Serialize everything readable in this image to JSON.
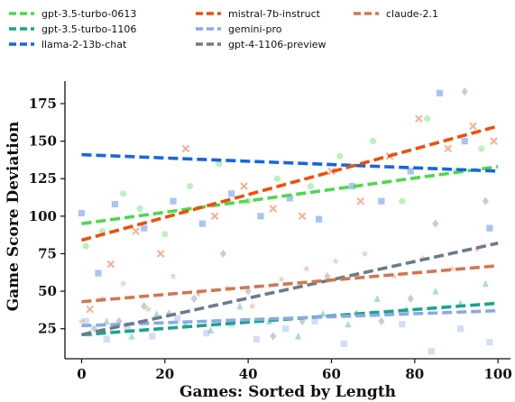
{
  "chart_data": {
    "type": "scatter",
    "title": "",
    "xlabel": "Games: Sorted by Length",
    "ylabel": "Game Score Deviation",
    "xlim": [
      -4,
      103
    ],
    "ylim": [
      5,
      190
    ],
    "xticks": [
      0,
      20,
      40,
      60,
      80,
      100
    ],
    "yticks": [
      25,
      50,
      75,
      100,
      125,
      150,
      175
    ],
    "grid": false,
    "legend_position": "top",
    "trend_style": "dashed linear fit per series over scattered points",
    "series": [
      {
        "name": "gpt-3.5-turbo-0613",
        "color": "#4cd94c",
        "marker": "circle",
        "trend": {
          "x0": 0,
          "y0": 95,
          "x1": 100,
          "y1": 133
        },
        "sample_points": [
          [
            1,
            80
          ],
          [
            5,
            90
          ],
          [
            10,
            115
          ],
          [
            14,
            105
          ],
          [
            20,
            88
          ],
          [
            26,
            120
          ],
          [
            33,
            135
          ],
          [
            40,
            110
          ],
          [
            47,
            125
          ],
          [
            55,
            120
          ],
          [
            62,
            140
          ],
          [
            70,
            150
          ],
          [
            77,
            110
          ],
          [
            83,
            165
          ],
          [
            90,
            130
          ],
          [
            96,
            145
          ]
        ]
      },
      {
        "name": "gpt-3.5-turbo-1106",
        "color": "#17a589",
        "marker": "triangle",
        "trend": {
          "x0": 0,
          "y0": 21,
          "x1": 100,
          "y1": 42
        },
        "sample_points": [
          [
            2,
            22
          ],
          [
            6,
            30
          ],
          [
            12,
            20
          ],
          [
            18,
            35
          ],
          [
            25,
            28
          ],
          [
            31,
            24
          ],
          [
            38,
            40
          ],
          [
            45,
            30
          ],
          [
            52,
            20
          ],
          [
            58,
            35
          ],
          [
            64,
            28
          ],
          [
            71,
            45
          ],
          [
            78,
            38
          ],
          [
            85,
            50
          ],
          [
            91,
            42
          ],
          [
            97,
            55
          ]
        ]
      },
      {
        "name": "llama-2-13b-chat",
        "color": "#1666e0",
        "marker": "square",
        "trend": {
          "x0": 0,
          "y0": 141,
          "x1": 100,
          "y1": 130
        },
        "sample_points": [
          [
            0,
            102
          ],
          [
            4,
            62
          ],
          [
            8,
            108
          ],
          [
            15,
            92
          ],
          [
            22,
            110
          ],
          [
            29,
            95
          ],
          [
            36,
            115
          ],
          [
            43,
            100
          ],
          [
            50,
            112
          ],
          [
            57,
            98
          ],
          [
            65,
            120
          ],
          [
            72,
            110
          ],
          [
            79,
            130
          ],
          [
            86,
            182
          ],
          [
            92,
            150
          ],
          [
            98,
            92
          ]
        ]
      },
      {
        "name": "mistral-7b-instruct",
        "color": "#f04e0b",
        "marker": "x",
        "trend": {
          "x0": 0,
          "y0": 84,
          "x1": 100,
          "y1": 160
        },
        "sample_points": [
          [
            2,
            38
          ],
          [
            7,
            68
          ],
          [
            13,
            90
          ],
          [
            19,
            75
          ],
          [
            25,
            145
          ],
          [
            32,
            100
          ],
          [
            39,
            120
          ],
          [
            46,
            105
          ],
          [
            53,
            100
          ],
          [
            60,
            130
          ],
          [
            67,
            110
          ],
          [
            74,
            140
          ],
          [
            81,
            165
          ],
          [
            88,
            145
          ],
          [
            94,
            160
          ],
          [
            99,
            150
          ]
        ]
      },
      {
        "name": "gemini-pro",
        "color": "#8aa9e6",
        "marker": "square",
        "trend": {
          "x0": 0,
          "y0": 27,
          "x1": 100,
          "y1": 37
        },
        "sample_points": [
          [
            1,
            30
          ],
          [
            6,
            18
          ],
          [
            11,
            25
          ],
          [
            17,
            20
          ],
          [
            23,
            32
          ],
          [
            30,
            22
          ],
          [
            36,
            28
          ],
          [
            42,
            18
          ],
          [
            49,
            25
          ],
          [
            56,
            30
          ],
          [
            63,
            15
          ],
          [
            70,
            35
          ],
          [
            77,
            28
          ],
          [
            84,
            10
          ],
          [
            91,
            25
          ],
          [
            98,
            16
          ]
        ]
      },
      {
        "name": "gpt-4-1106-preview",
        "color": "#6b7b8a",
        "marker": "diamond",
        "trend": {
          "x0": 0,
          "y0": 21,
          "x1": 100,
          "y1": 82
        },
        "sample_points": [
          [
            3,
            25
          ],
          [
            9,
            30
          ],
          [
            15,
            40
          ],
          [
            21,
            35
          ],
          [
            27,
            45
          ],
          [
            34,
            75
          ],
          [
            40,
            50
          ],
          [
            46,
            20
          ],
          [
            53,
            30
          ],
          [
            59,
            60
          ],
          [
            66,
            35
          ],
          [
            72,
            30
          ],
          [
            79,
            45
          ],
          [
            85,
            95
          ],
          [
            92,
            183
          ],
          [
            97,
            110
          ]
        ]
      },
      {
        "name": "claude-2.1",
        "color": "#d2764f",
        "marker": "star",
        "trend": {
          "x0": 0,
          "y0": 43,
          "x1": 100,
          "y1": 67
        },
        "sample_points": [
          [
            0,
            30
          ],
          [
            5,
            45
          ],
          [
            10,
            55
          ],
          [
            16,
            38
          ],
          [
            22,
            60
          ],
          [
            28,
            48
          ],
          [
            35,
            52
          ],
          [
            41,
            40
          ],
          [
            48,
            58
          ],
          [
            54,
            65
          ],
          [
            61,
            70
          ],
          [
            68,
            75
          ],
          [
            75,
            60
          ],
          [
            82,
            72
          ],
          [
            89,
            65
          ],
          [
            95,
            78
          ]
        ]
      }
    ]
  }
}
